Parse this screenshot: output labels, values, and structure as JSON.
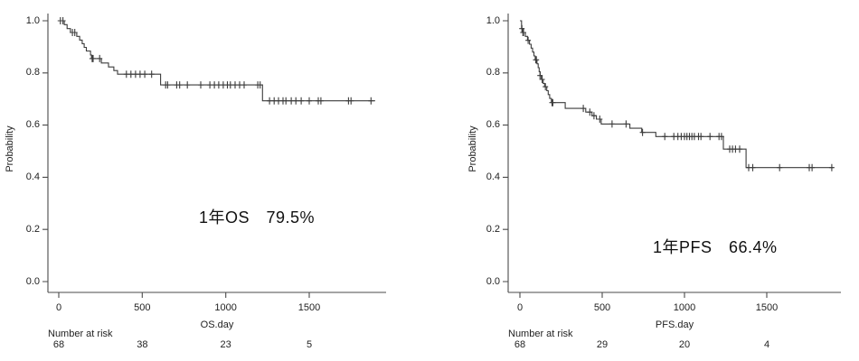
{
  "colors": {
    "curve": "#3c3c3c",
    "axis": "#4a4a4a",
    "text": "#222222",
    "background": "#ffffff"
  },
  "chart_data": [
    {
      "type": "line",
      "subtype": "kaplan-meier-step",
      "title": "",
      "ylabel": "Probability",
      "xlabel": "OS.day",
      "annotation": "1年OS　79.5%",
      "number_at_risk_label": "Number at risk",
      "number_at_risk": [
        {
          "day": 0,
          "n": "68"
        },
        {
          "day": 500,
          "n": "38"
        },
        {
          "day": 1000,
          "n": "23"
        },
        {
          "day": 1500,
          "n": "5"
        }
      ],
      "x_ticks": [
        {
          "value": 0,
          "label": "0"
        },
        {
          "value": 500,
          "label": "500"
        },
        {
          "value": 1000,
          "label": "1000"
        },
        {
          "value": 1500,
          "label": "1500"
        }
      ],
      "y_ticks": [
        {
          "value": 0.0,
          "label": "0.0"
        },
        {
          "value": 0.2,
          "label": "0.2"
        },
        {
          "value": 0.4,
          "label": "0.4"
        },
        {
          "value": 0.6,
          "label": "0.6"
        },
        {
          "value": 0.8,
          "label": "0.8"
        },
        {
          "value": 1.0,
          "label": "1.0"
        }
      ],
      "xlim": [
        0,
        1960
      ],
      "ylim": [
        0,
        1.0
      ],
      "grid": false,
      "legend": "none",
      "one_year_survival": "79.5%",
      "steps": [
        [
          0,
          1.0
        ],
        [
          33,
          0.985
        ],
        [
          50,
          0.97
        ],
        [
          70,
          0.955
        ],
        [
          108,
          0.94
        ],
        [
          125,
          0.926
        ],
        [
          140,
          0.912
        ],
        [
          152,
          0.898
        ],
        [
          165,
          0.884
        ],
        [
          190,
          0.869
        ],
        [
          196,
          0.855
        ],
        [
          255,
          0.838
        ],
        [
          298,
          0.823
        ],
        [
          330,
          0.809
        ],
        [
          352,
          0.795
        ],
        [
          610,
          0.754
        ],
        [
          1220,
          0.693
        ]
      ],
      "end_day": 1895,
      "censors": [
        [
          10,
          1.0
        ],
        [
          25,
          1.0
        ],
        [
          82,
          0.955
        ],
        [
          96,
          0.955
        ],
        [
          200,
          0.855
        ],
        [
          206,
          0.855
        ],
        [
          245,
          0.855
        ],
        [
          405,
          0.795
        ],
        [
          432,
          0.795
        ],
        [
          460,
          0.795
        ],
        [
          487,
          0.795
        ],
        [
          515,
          0.795
        ],
        [
          556,
          0.795
        ],
        [
          640,
          0.754
        ],
        [
          652,
          0.754
        ],
        [
          706,
          0.754
        ],
        [
          724,
          0.754
        ],
        [
          770,
          0.754
        ],
        [
          850,
          0.754
        ],
        [
          905,
          0.754
        ],
        [
          932,
          0.754
        ],
        [
          958,
          0.754
        ],
        [
          985,
          0.754
        ],
        [
          1010,
          0.754
        ],
        [
          1028,
          0.754
        ],
        [
          1056,
          0.754
        ],
        [
          1083,
          0.754
        ],
        [
          1110,
          0.754
        ],
        [
          1192,
          0.754
        ],
        [
          1206,
          0.754
        ],
        [
          1262,
          0.693
        ],
        [
          1290,
          0.693
        ],
        [
          1316,
          0.693
        ],
        [
          1343,
          0.693
        ],
        [
          1360,
          0.693
        ],
        [
          1392,
          0.693
        ],
        [
          1420,
          0.693
        ],
        [
          1452,
          0.693
        ],
        [
          1500,
          0.693
        ],
        [
          1554,
          0.693
        ],
        [
          1570,
          0.693
        ],
        [
          1735,
          0.693
        ],
        [
          1750,
          0.693
        ],
        [
          1870,
          0.693
        ]
      ]
    },
    {
      "type": "line",
      "subtype": "kaplan-meier-step",
      "title": "",
      "ylabel": "Probability",
      "xlabel": "PFS.day",
      "annotation": "1年PFS　66.4%",
      "number_at_risk_label": "Number at risk",
      "number_at_risk": [
        {
          "day": 0,
          "n": "68"
        },
        {
          "day": 500,
          "n": "29"
        },
        {
          "day": 1000,
          "n": "20"
        },
        {
          "day": 1500,
          "n": "4"
        }
      ],
      "x_ticks": [
        {
          "value": 0,
          "label": "0"
        },
        {
          "value": 500,
          "label": "500"
        },
        {
          "value": 1000,
          "label": "1000"
        },
        {
          "value": 1500,
          "label": "1500"
        }
      ],
      "y_ticks": [
        {
          "value": 0.0,
          "label": "0.0"
        },
        {
          "value": 0.2,
          "label": "0.2"
        },
        {
          "value": 0.4,
          "label": "0.4"
        },
        {
          "value": 0.6,
          "label": "0.6"
        },
        {
          "value": 0.8,
          "label": "0.8"
        },
        {
          "value": 1.0,
          "label": "1.0"
        }
      ],
      "xlim": [
        0,
        1950
      ],
      "ylim": [
        0,
        1.0
      ],
      "grid": false,
      "legend": "none",
      "one_year_survival": "66.4%",
      "steps": [
        [
          0,
          1.0
        ],
        [
          10,
          0.97
        ],
        [
          20,
          0.955
        ],
        [
          33,
          0.94
        ],
        [
          46,
          0.925
        ],
        [
          58,
          0.91
        ],
        [
          68,
          0.895
        ],
        [
          77,
          0.88
        ],
        [
          85,
          0.865
        ],
        [
          93,
          0.85
        ],
        [
          104,
          0.835
        ],
        [
          111,
          0.82
        ],
        [
          117,
          0.805
        ],
        [
          123,
          0.79
        ],
        [
          130,
          0.775
        ],
        [
          141,
          0.76
        ],
        [
          150,
          0.747
        ],
        [
          163,
          0.732
        ],
        [
          172,
          0.717
        ],
        [
          181,
          0.702
        ],
        [
          191,
          0.686
        ],
        [
          275,
          0.664
        ],
        [
          400,
          0.65
        ],
        [
          438,
          0.636
        ],
        [
          465,
          0.623
        ],
        [
          494,
          0.604
        ],
        [
          668,
          0.588
        ],
        [
          740,
          0.572
        ],
        [
          826,
          0.556
        ],
        [
          1236,
          0.508
        ],
        [
          1374,
          0.437
        ]
      ],
      "end_day": 1905,
      "censors": [
        [
          12,
          0.97
        ],
        [
          18,
          0.955
        ],
        [
          22,
          0.955
        ],
        [
          50,
          0.925
        ],
        [
          96,
          0.85
        ],
        [
          100,
          0.85
        ],
        [
          122,
          0.79
        ],
        [
          135,
          0.775
        ],
        [
          155,
          0.747
        ],
        [
          195,
          0.686
        ],
        [
          200,
          0.686
        ],
        [
          385,
          0.664
        ],
        [
          425,
          0.65
        ],
        [
          450,
          0.636
        ],
        [
          485,
          0.623
        ],
        [
          560,
          0.604
        ],
        [
          645,
          0.604
        ],
        [
          745,
          0.572
        ],
        [
          880,
          0.556
        ],
        [
          935,
          0.556
        ],
        [
          960,
          0.556
        ],
        [
          980,
          0.556
        ],
        [
          1000,
          0.556
        ],
        [
          1015,
          0.556
        ],
        [
          1030,
          0.556
        ],
        [
          1045,
          0.556
        ],
        [
          1060,
          0.556
        ],
        [
          1085,
          0.556
        ],
        [
          1100,
          0.556
        ],
        [
          1155,
          0.556
        ],
        [
          1210,
          0.556
        ],
        [
          1225,
          0.556
        ],
        [
          1275,
          0.508
        ],
        [
          1292,
          0.508
        ],
        [
          1310,
          0.508
        ],
        [
          1335,
          0.508
        ],
        [
          1390,
          0.437
        ],
        [
          1415,
          0.437
        ],
        [
          1578,
          0.437
        ],
        [
          1758,
          0.437
        ],
        [
          1775,
          0.437
        ],
        [
          1895,
          0.437
        ]
      ]
    }
  ]
}
